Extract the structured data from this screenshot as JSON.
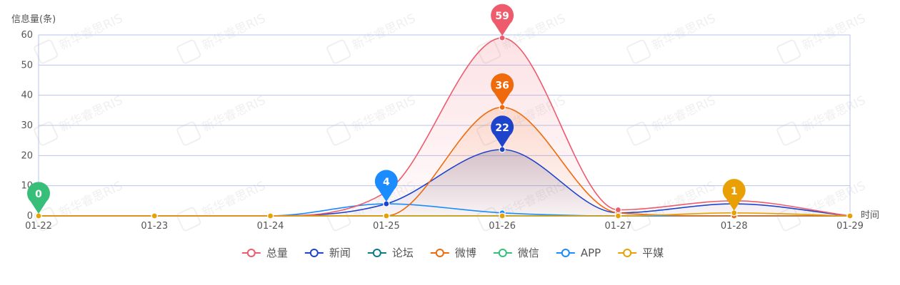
{
  "chart_data": {
    "type": "line",
    "ylabel": "信息量(条)",
    "xlabel": "时间",
    "ylim": [
      0,
      60
    ],
    "yticks": [
      0,
      10,
      20,
      30,
      40,
      50,
      60
    ],
    "categories": [
      "01-22",
      "01-23",
      "01-24",
      "01-25",
      "01-26",
      "01-27",
      "01-28",
      "01-29"
    ],
    "grid": true,
    "legend_position": "bottom-center",
    "series": [
      {
        "name": "总量",
        "color": "#ee5b6c",
        "values": [
          0,
          0,
          0,
          8,
          59,
          2,
          5,
          0
        ],
        "area": true
      },
      {
        "name": "新闻",
        "color": "#1f44cc",
        "values": [
          0,
          0,
          0,
          4,
          22,
          1,
          4,
          0
        ],
        "area": true
      },
      {
        "name": "论坛",
        "color": "#0b7a8a",
        "values": [
          0,
          0,
          0,
          0,
          0,
          0,
          0,
          0
        ],
        "area": false
      },
      {
        "name": "微博",
        "color": "#ee6a0c",
        "values": [
          0,
          0,
          0,
          0,
          36,
          1,
          0,
          0
        ],
        "area": true
      },
      {
        "name": "微信",
        "color": "#37bf7a",
        "values": [
          0,
          0,
          0,
          0,
          0,
          0,
          0,
          0
        ],
        "area": false
      },
      {
        "name": "APP",
        "color": "#1a8cff",
        "values": [
          0,
          0,
          0,
          4,
          1,
          0,
          0,
          0
        ],
        "area": false
      },
      {
        "name": "平媒",
        "color": "#e9a005",
        "values": [
          0,
          0,
          0,
          0,
          0,
          0,
          1,
          0
        ],
        "area": false
      }
    ],
    "markers": [
      {
        "series": "微信",
        "index": 0,
        "label": "0"
      },
      {
        "series": "APP",
        "index": 3,
        "label": "4"
      },
      {
        "series": "总量",
        "index": 4,
        "label": "59"
      },
      {
        "series": "微博",
        "index": 4,
        "label": "36"
      },
      {
        "series": "新闻",
        "index": 4,
        "label": "22"
      },
      {
        "series": "平媒",
        "index": 6,
        "label": "1"
      }
    ]
  },
  "watermark": {
    "text": "新华睿思RIS"
  }
}
